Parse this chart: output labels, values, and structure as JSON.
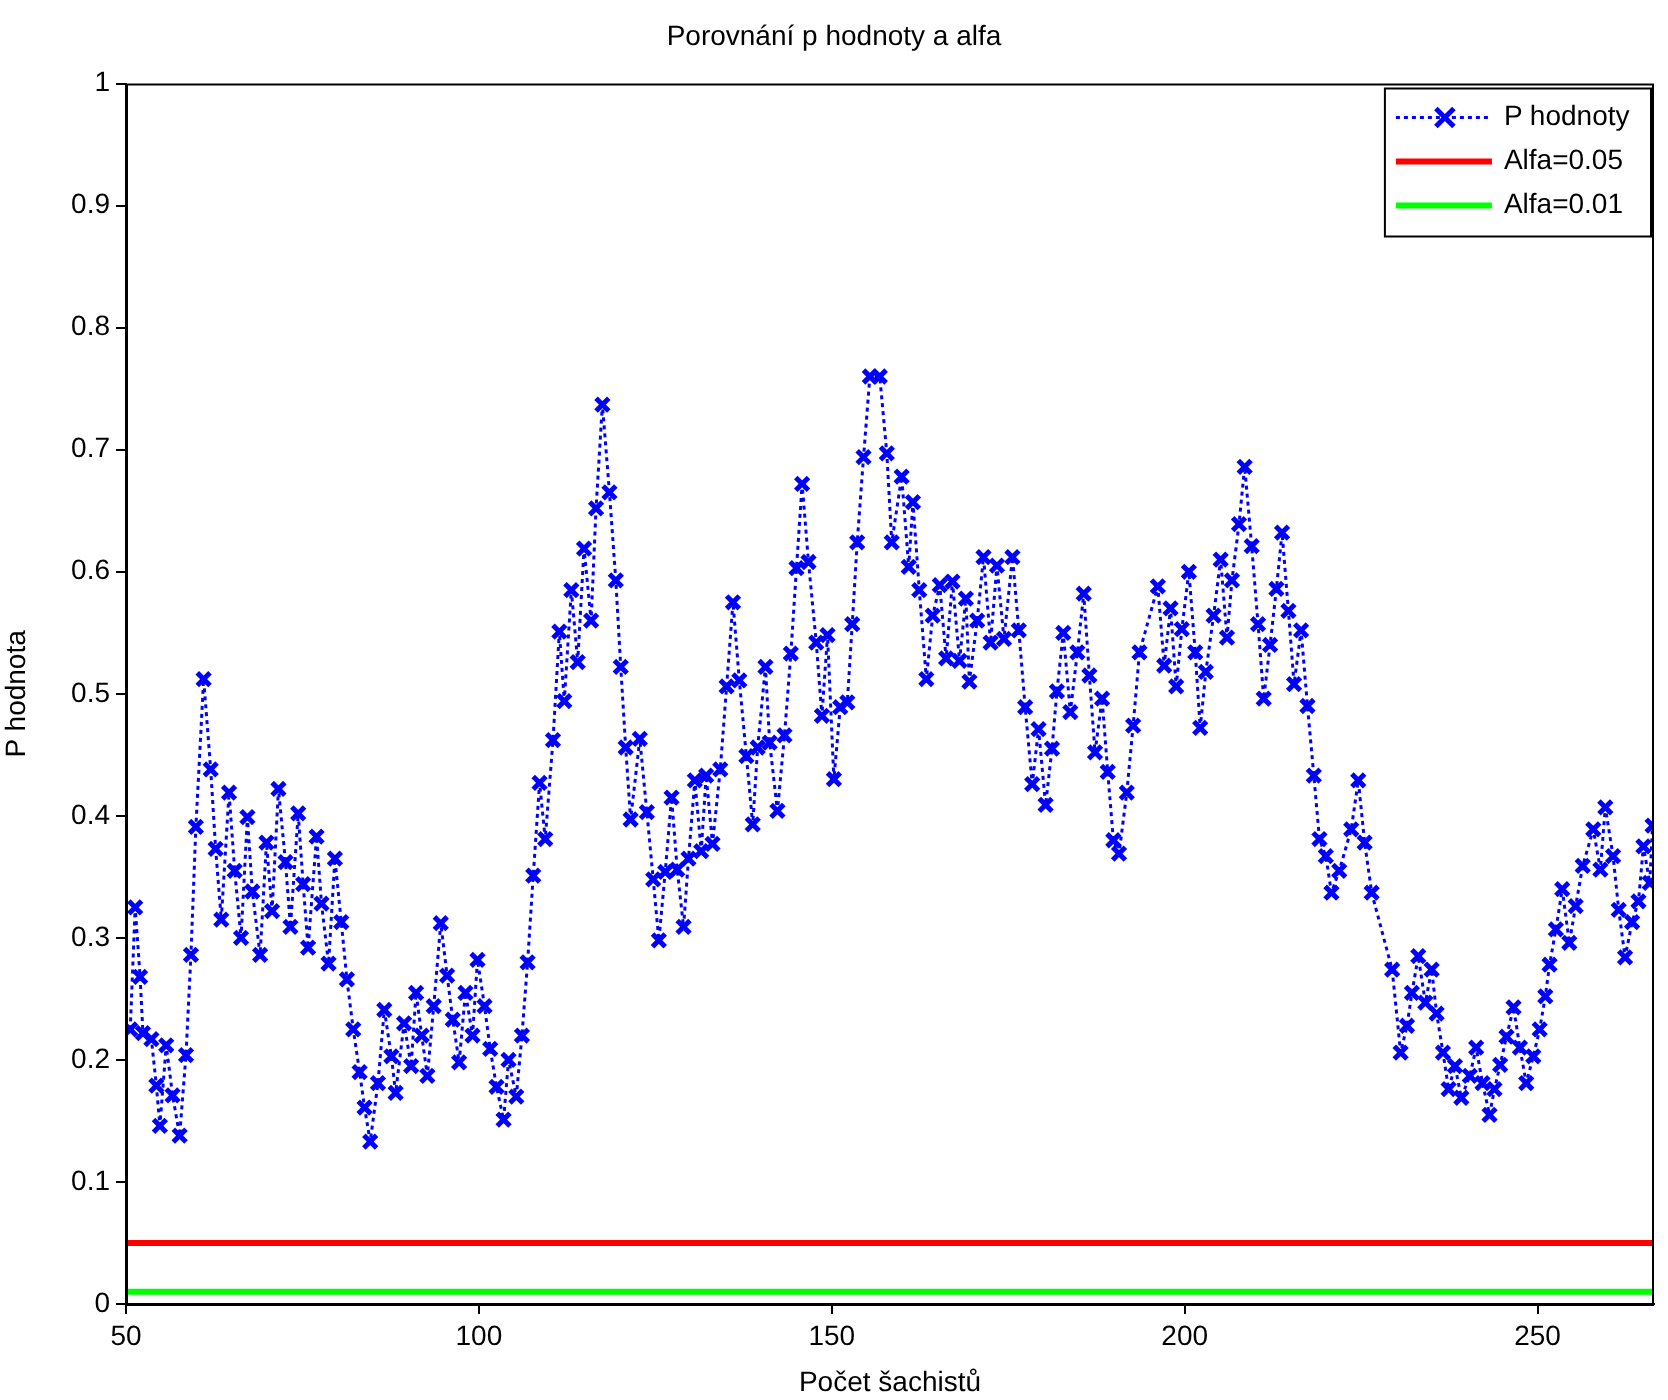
{
  "chart_data": {
    "type": "line",
    "title": "Porovnání p hodnoty a alfa",
    "xlabel": "Počet šachistů",
    "ylabel": "P hodnota",
    "xlim": [
      50,
      266.5
    ],
    "xticks": [
      50,
      100,
      150,
      200,
      250
    ],
    "ylim": [
      0,
      1
    ],
    "yticks": [
      0,
      0.1,
      0.2,
      0.3,
      0.4,
      0.5,
      0.6,
      0.7,
      0.8,
      0.9,
      1
    ],
    "grid": false,
    "legend": "top right",
    "series": [
      {
        "name": "P hodnoty",
        "color": "#0000ff",
        "marker": "cross",
        "line_style": "dotted",
        "x": [
          50.6,
          51.3,
          52.0,
          52.4,
          53.6,
          54.3,
          54.8,
          55.7,
          56.6,
          57.6,
          58.5,
          59.2,
          59.9,
          61.0,
          62.0,
          62.7,
          63.5,
          64.6,
          65.4,
          66.3,
          67.2,
          67.9,
          69.0,
          69.9,
          70.7,
          71.6,
          72.6,
          73.3,
          74.4,
          75.1,
          75.8,
          77.0,
          77.7,
          78.7,
          79.6,
          80.5,
          81.3,
          82.2,
          83.1,
          83.8,
          84.6,
          85.7,
          86.6,
          87.6,
          88.2,
          89.4,
          90.4,
          91.1,
          91.9,
          92.7,
          93.6,
          94.6,
          95.5,
          96.3,
          97.2,
          98.1,
          99.1,
          99.8,
          100.8,
          101.6,
          102.5,
          103.5,
          104.2,
          105.3,
          106.1,
          106.9,
          107.7,
          108.6,
          109.4,
          110.5,
          111.4,
          112.1,
          113.1,
          114.0,
          114.9,
          115.9,
          116.6,
          117.5,
          118.5,
          119.4,
          120.1,
          120.8,
          121.5,
          122.8,
          123.8,
          124.7,
          125.5,
          126.4,
          127.3,
          128.1,
          129.0,
          129.7,
          130.6,
          131.5,
          132.2,
          133.1,
          134.2,
          135.1,
          136.0,
          136.9,
          137.9,
          138.8,
          139.5,
          140.6,
          141.2,
          142.3,
          143.3,
          144.2,
          145.0,
          145.8,
          146.7,
          147.8,
          148.6,
          149.4,
          150.3,
          151.2,
          152.2,
          152.9,
          153.6,
          154.5,
          155.4,
          156.8,
          157.8,
          158.5,
          159.9,
          160.9,
          161.5,
          162.4,
          163.4,
          164.3,
          165.3,
          166.2,
          167.1,
          168.1,
          169.0,
          169.5,
          170.6,
          171.5,
          172.5,
          173.4,
          174.4,
          175.6,
          176.5,
          177.4,
          178.4,
          179.3,
          180.3,
          181.2,
          181.9,
          182.8,
          183.8,
          184.8,
          185.7,
          186.5,
          187.3,
          188.3,
          189.1,
          189.9,
          190.7,
          191.8,
          192.7,
          193.6,
          196.2,
          197.1,
          198.0,
          198.8,
          199.6,
          200.6,
          201.5,
          202.2,
          203.0,
          204.1,
          205.1,
          206.0,
          206.7,
          207.7,
          208.5,
          209.5,
          210.4,
          211.2,
          212.1,
          213.0,
          213.8,
          214.7,
          215.5,
          216.5,
          217.4,
          218.3,
          219.1,
          220.0,
          220.8,
          221.9,
          223.6,
          224.6,
          225.5,
          226.5,
          229.4,
          230.6,
          231.5,
          232.2,
          233.1,
          234.1,
          235.0,
          235.7,
          236.6,
          237.4,
          238.3,
          239.2,
          240.4,
          241.3,
          242.2,
          243.2,
          243.9,
          244.7,
          245.6,
          246.6,
          247.5,
          248.4,
          249.4,
          250.3,
          251.1,
          251.7,
          252.6,
          253.5,
          254.5,
          255.4,
          256.4,
          257.9,
          258.9,
          259.6,
          260.7,
          261.5,
          262.4,
          263.4,
          264.3,
          265.0,
          265.9,
          266.3
        ],
        "values": [
          0.225,
          0.325,
          0.268,
          0.222,
          0.217,
          0.179,
          0.146,
          0.212,
          0.171,
          0.138,
          0.204,
          0.286,
          0.391,
          0.512,
          0.438,
          0.373,
          0.315,
          0.419,
          0.355,
          0.3,
          0.399,
          0.338,
          0.286,
          0.378,
          0.322,
          0.422,
          0.362,
          0.309,
          0.402,
          0.344,
          0.292,
          0.383,
          0.328,
          0.279,
          0.365,
          0.313,
          0.266,
          0.225,
          0.19,
          0.161,
          0.133,
          0.181,
          0.241,
          0.203,
          0.173,
          0.23,
          0.195,
          0.255,
          0.22,
          0.187,
          0.244,
          0.312,
          0.269,
          0.233,
          0.198,
          0.255,
          0.22,
          0.282,
          0.244,
          0.209,
          0.178,
          0.151,
          0.2,
          0.17,
          0.22,
          0.28,
          0.351,
          0.427,
          0.381,
          0.462,
          0.551,
          0.494,
          0.585,
          0.526,
          0.619,
          0.56,
          0.652,
          0.737,
          0.665,
          0.593,
          0.522,
          0.456,
          0.397,
          0.463,
          0.403,
          0.348,
          0.298,
          0.354,
          0.415,
          0.356,
          0.309,
          0.365,
          0.429,
          0.371,
          0.433,
          0.377,
          0.438,
          0.506,
          0.575,
          0.511,
          0.449,
          0.393,
          0.456,
          0.522,
          0.46,
          0.404,
          0.466,
          0.533,
          0.603,
          0.672,
          0.608,
          0.542,
          0.482,
          0.548,
          0.43,
          0.489,
          0.493,
          0.557,
          0.624,
          0.694,
          0.76,
          0.76,
          0.697,
          0.624,
          0.678,
          0.604,
          0.657,
          0.585,
          0.512,
          0.564,
          0.589,
          0.529,
          0.592,
          0.527,
          0.578,
          0.51,
          0.56,
          0.612,
          0.542,
          0.605,
          0.545,
          0.612,
          0.552,
          0.489,
          0.426,
          0.471,
          0.409,
          0.455,
          0.502,
          0.55,
          0.485,
          0.534,
          0.582,
          0.515,
          0.452,
          0.496,
          0.436,
          0.38,
          0.369,
          0.419,
          0.474,
          0.534,
          0.588,
          0.523,
          0.57,
          0.506,
          0.553,
          0.6,
          0.534,
          0.472,
          0.518,
          0.564,
          0.61,
          0.546,
          0.593,
          0.639,
          0.686,
          0.621,
          0.557,
          0.496,
          0.54,
          0.586,
          0.632,
          0.568,
          0.508,
          0.552,
          0.49,
          0.433,
          0.381,
          0.367,
          0.337,
          0.355,
          0.389,
          0.429,
          0.378,
          0.337,
          0.274,
          0.206,
          0.228,
          0.255,
          0.285,
          0.247,
          0.274,
          0.238,
          0.206,
          0.176,
          0.195,
          0.169,
          0.187,
          0.21,
          0.181,
          0.155,
          0.176,
          0.196,
          0.219,
          0.243,
          0.21,
          0.181,
          0.203,
          0.225,
          0.252,
          0.278,
          0.307,
          0.34,
          0.296,
          0.326,
          0.359,
          0.389,
          0.356,
          0.407,
          0.367,
          0.323,
          0.284,
          0.313,
          0.33,
          0.375,
          0.345,
          0.392
        ]
      },
      {
        "name": "Alfa=0.05",
        "color": "#ff0000",
        "line_style": "solid",
        "x": [
          50,
          266.5
        ],
        "values": [
          0.05,
          0.05
        ]
      },
      {
        "name": "Alfa=0.01",
        "color": "#00ff00",
        "line_style": "solid",
        "x": [
          50,
          266.5
        ],
        "values": [
          0.01,
          0.01
        ]
      }
    ]
  }
}
